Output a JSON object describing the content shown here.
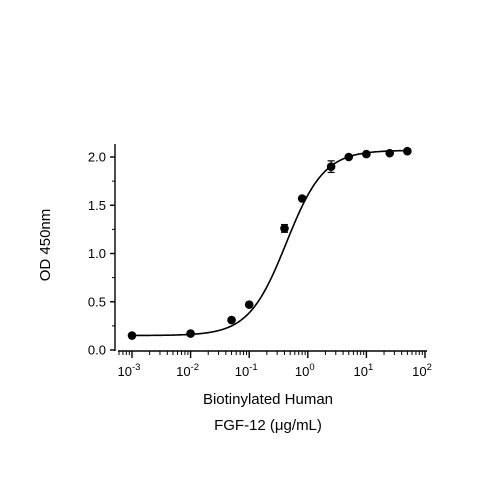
{
  "chart_data": {
    "type": "scatter",
    "title": "",
    "xlabel_lines": [
      "Biotinylated Human",
      "FGF-12 (μg/mL)"
    ],
    "ylabel": "OD 450nm",
    "x_scale": "log",
    "xlim": [
      0.0005,
      100
    ],
    "ylim": [
      0,
      2.1
    ],
    "x_ticks": [
      {
        "value": 0.001,
        "base": "10",
        "exp": "-3"
      },
      {
        "value": 0.01,
        "base": "10",
        "exp": "-2"
      },
      {
        "value": 0.1,
        "base": "10",
        "exp": "-1"
      },
      {
        "value": 1,
        "base": "10",
        "exp": "0"
      },
      {
        "value": 10,
        "base": "10",
        "exp": "1"
      },
      {
        "value": 100,
        "base": "10",
        "exp": "2"
      }
    ],
    "y_ticks": [
      {
        "value": 0,
        "label": "0.0"
      },
      {
        "value": 0.5,
        "label": "0.5"
      },
      {
        "value": 1.0,
        "label": "1.0"
      },
      {
        "value": 1.5,
        "label": "1.5"
      },
      {
        "value": 2.0,
        "label": "2.0"
      }
    ],
    "grid": false,
    "legend": "none",
    "series": [
      {
        "x": [
          0.001,
          0.01,
          0.05,
          0.1,
          0.4,
          0.8,
          2.5,
          5,
          10,
          25,
          50
        ],
        "y": [
          0.15,
          0.17,
          0.31,
          0.47,
          1.26,
          1.57,
          1.9,
          2.0,
          2.03,
          2.04,
          2.06
        ],
        "yerr": [
          0,
          0,
          0,
          0,
          0.04,
          0,
          0.06,
          0,
          0,
          0,
          0
        ]
      }
    ],
    "fit_curve": {
      "model": "4PL",
      "bottom": 0.15,
      "top": 2.07,
      "ec50": 0.43,
      "hill": 1.35,
      "x_range": [
        0.001,
        50
      ]
    }
  }
}
